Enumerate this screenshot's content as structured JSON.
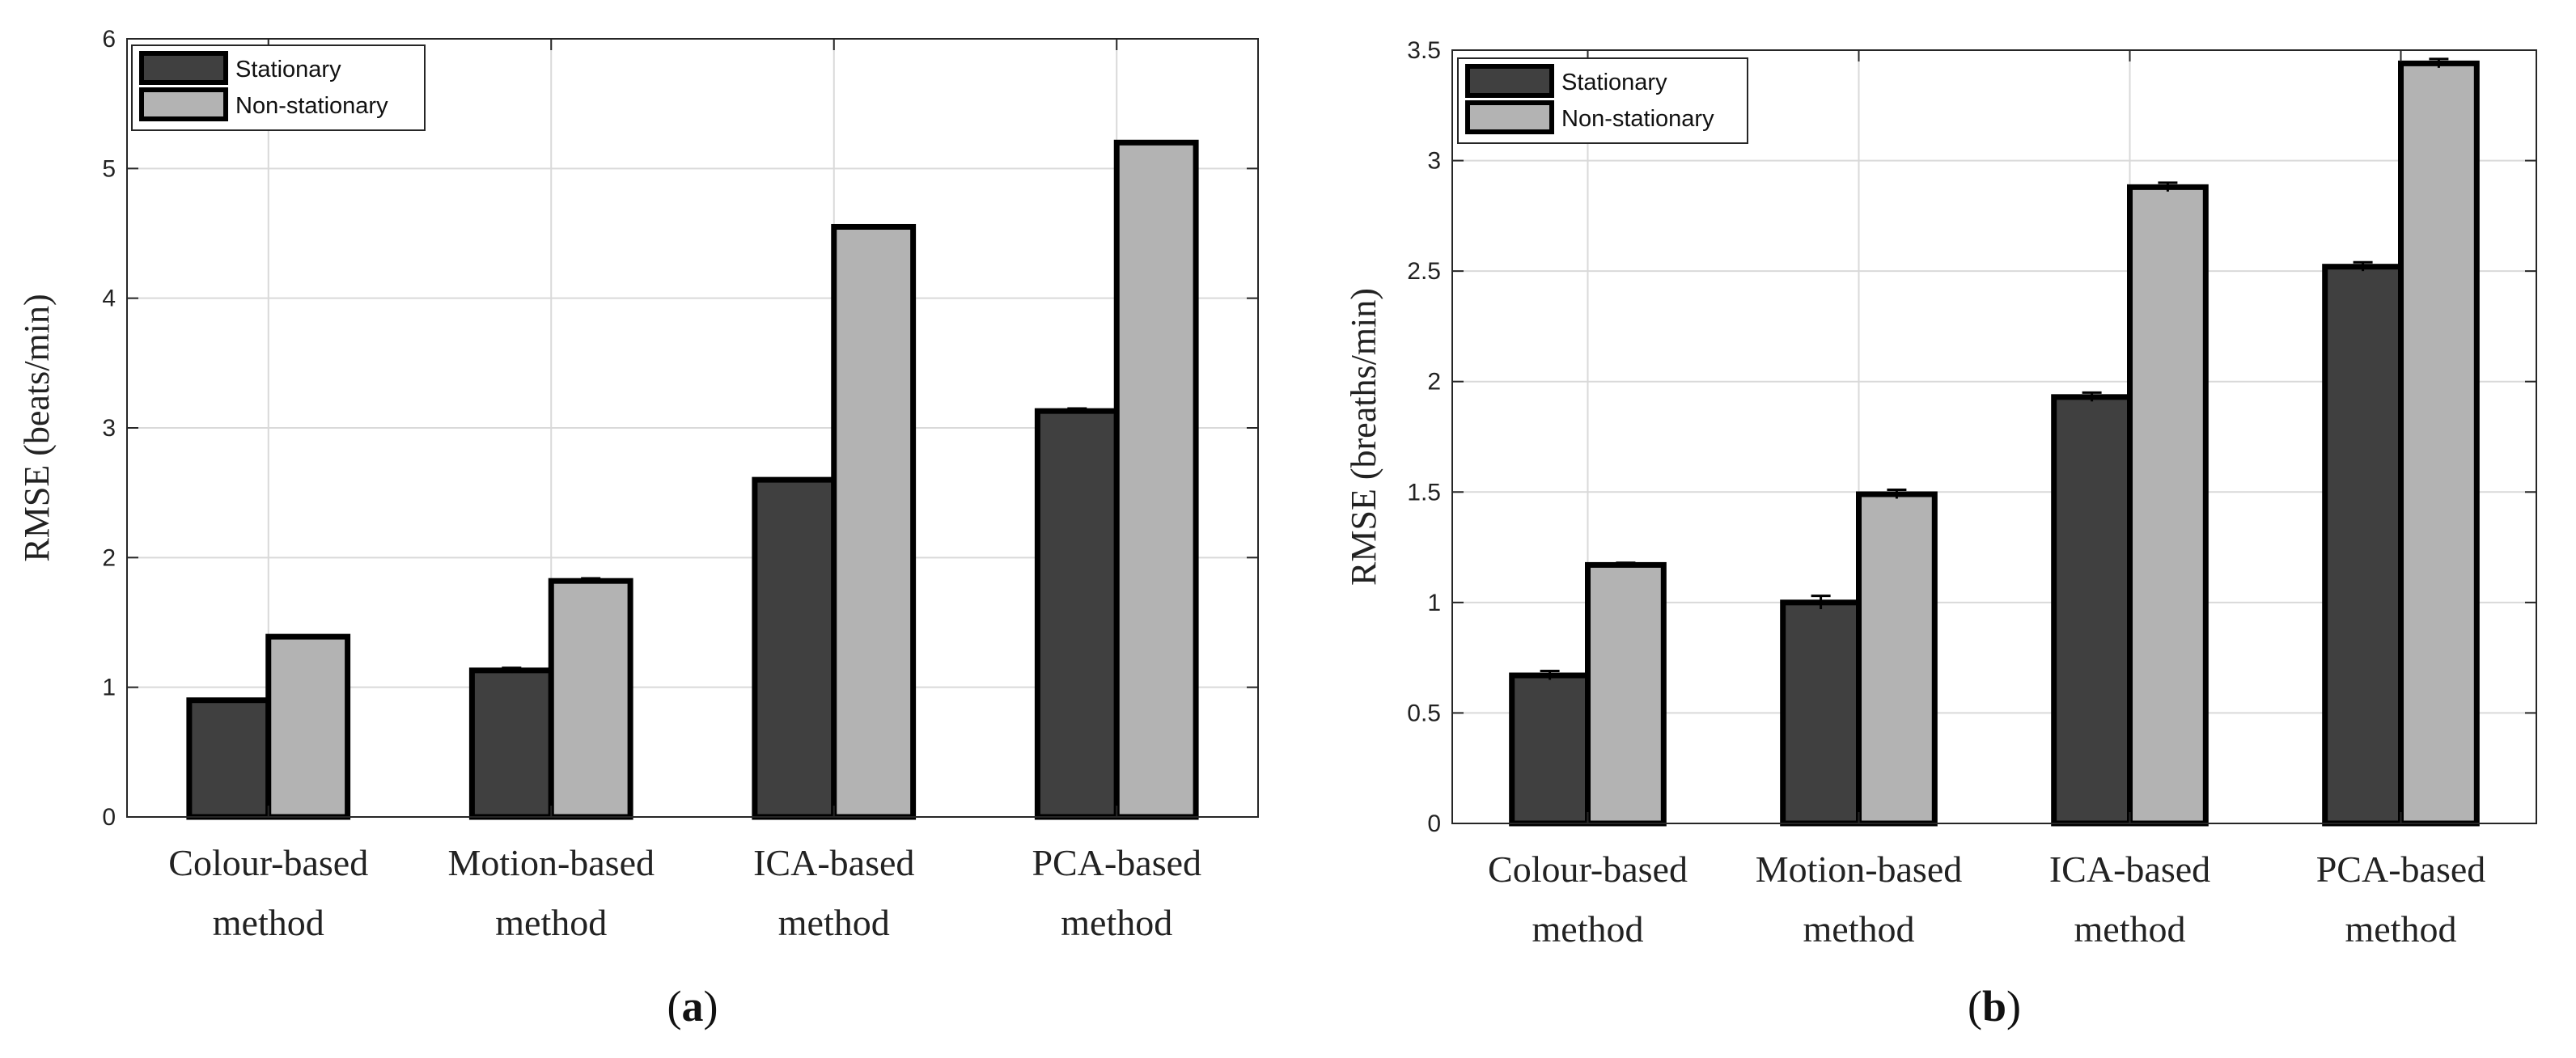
{
  "chart_data": [
    {
      "type": "bar",
      "caption_letter": "a",
      "ylabel": "RMSE (beats/min)",
      "xlabel": "",
      "ylim": [
        0,
        6
      ],
      "yticks": [
        0,
        1,
        2,
        3,
        4,
        5,
        6
      ],
      "grid": true,
      "legend_position": "top-left",
      "categories": [
        [
          "Colour-based",
          "method"
        ],
        [
          "Motion-based",
          "method"
        ],
        [
          "ICA-based",
          "method"
        ],
        [
          "PCA-based",
          "method"
        ]
      ],
      "series": [
        {
          "name": "Stationary",
          "color": "#404040",
          "values": [
            0.9,
            1.13,
            2.6,
            3.13
          ],
          "errors": [
            0,
            0.02,
            0,
            0.02
          ]
        },
        {
          "name": "Non-stationary",
          "color": "#b3b3b3",
          "values": [
            1.39,
            1.82,
            4.55,
            5.2
          ],
          "errors": [
            0,
            0.02,
            0,
            0
          ]
        }
      ]
    },
    {
      "type": "bar",
      "caption_letter": "b",
      "ylabel": "RMSE (breaths/min)",
      "xlabel": "",
      "ylim": [
        0,
        3.5
      ],
      "yticks": [
        0,
        0.5,
        1,
        1.5,
        2,
        2.5,
        3,
        3.5
      ],
      "grid": true,
      "legend_position": "top-left",
      "categories": [
        [
          "Colour-based",
          "method"
        ],
        [
          "Motion-based",
          "method"
        ],
        [
          "ICA-based",
          "method"
        ],
        [
          "PCA-based",
          "method"
        ]
      ],
      "series": [
        {
          "name": "Stationary",
          "color": "#404040",
          "values": [
            0.67,
            1.0,
            1.93,
            2.52
          ],
          "errors": [
            0.02,
            0.03,
            0.02,
            0.02
          ]
        },
        {
          "name": "Non-stationary",
          "color": "#b3b3b3",
          "values": [
            1.17,
            1.49,
            2.88,
            3.44
          ],
          "errors": [
            0.01,
            0.02,
            0.02,
            0.02
          ]
        }
      ]
    }
  ]
}
